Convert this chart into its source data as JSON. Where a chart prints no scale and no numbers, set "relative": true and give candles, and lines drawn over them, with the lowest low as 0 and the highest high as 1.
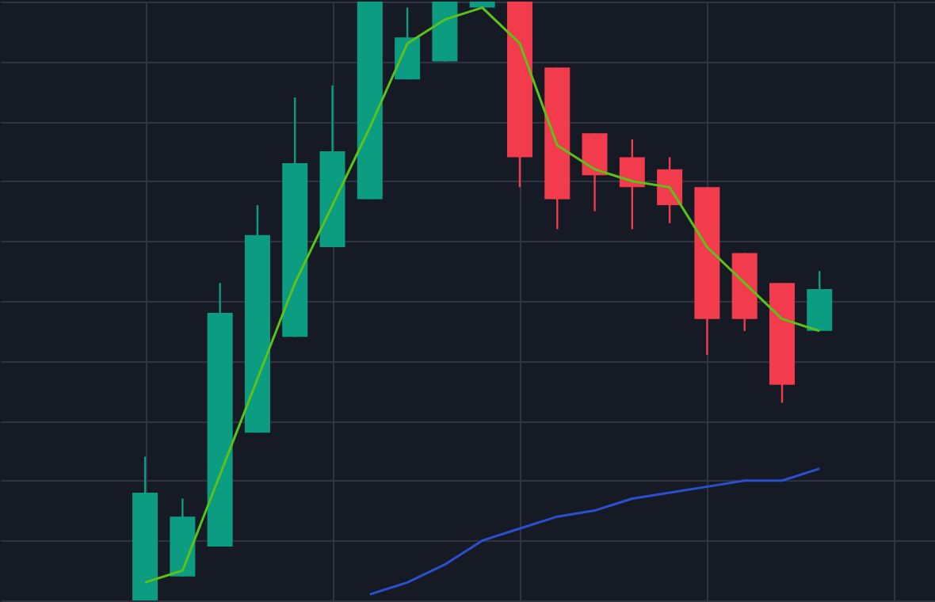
{
  "chart_data": {
    "type": "candlestick",
    "relative": true,
    "grid": true,
    "categories": [
      null,
      null,
      null,
      null,
      null,
      null,
      null,
      null,
      null,
      null,
      null,
      null,
      null,
      null,
      null,
      null,
      null,
      null,
      null
    ],
    "ohlc": [
      [
        0,
        0.24,
        0,
        0.18
      ],
      [
        0.04,
        0.17,
        0.04,
        0.14
      ],
      [
        0.09,
        0.53,
        0.09,
        0.48
      ],
      [
        0.28,
        0.66,
        0.28,
        0.61
      ],
      [
        0.44,
        0.84,
        0.44,
        0.73
      ],
      [
        0.59,
        0.86,
        0.59,
        0.75
      ],
      [
        0.67,
        1,
        0.67,
        1
      ],
      [
        0.87,
        0.99,
        0.87,
        0.94
      ],
      [
        0.9,
        1,
        0.9,
        1
      ],
      [
        0.99,
        1,
        0.99,
        1
      ],
      [
        1,
        1,
        0.69,
        0.74
      ],
      [
        0.89,
        0.89,
        0.62,
        0.67
      ],
      [
        0.78,
        0.78,
        0.65,
        0.71
      ],
      [
        0.74,
        0.77,
        0.62,
        0.69
      ],
      [
        0.72,
        0.74,
        0.63,
        0.66
      ],
      [
        0.69,
        0.69,
        0.41,
        0.47
      ],
      [
        0.58,
        0.58,
        0.45,
        0.47
      ],
      [
        0.53,
        0.53,
        0.33,
        0.36
      ],
      [
        0.45,
        0.55,
        0.45,
        0.52
      ]
    ],
    "colors": [
      "#0b9c82",
      "#0b9c82",
      "#0b9c82",
      "#0b9c82",
      "#0b9c82",
      "#0b9c82",
      "#0b9c82",
      "#0b9c82",
      "#0b9c82",
      "#0b9c82",
      "#f23b4c",
      "#f23b4c",
      "#f23b4c",
      "#f23b4c",
      "#f23b4c",
      "#f23b4c",
      "#f23b4c",
      "#f23b4c",
      "#0b9c82"
    ],
    "series": [
      {
        "type": "line",
        "color": "#5cc21a",
        "values": [
          0.03,
          0.05,
          0.21,
          0.37,
          0.53,
          0.66,
          0.79,
          0.93,
          0.97,
          0.99,
          0.93,
          0.76,
          0.72,
          0.7,
          0.69,
          0.59,
          0.53,
          0.47,
          0.45
        ]
      },
      {
        "type": "line",
        "color": "#2b4fcf",
        "values": [
          null,
          null,
          null,
          null,
          null,
          null,
          0.01,
          0.03,
          0.06,
          0.1,
          0.12,
          0.14,
          0.15,
          0.17,
          0.18,
          0.19,
          0.2,
          0.2,
          0.22
        ]
      }
    ]
  }
}
